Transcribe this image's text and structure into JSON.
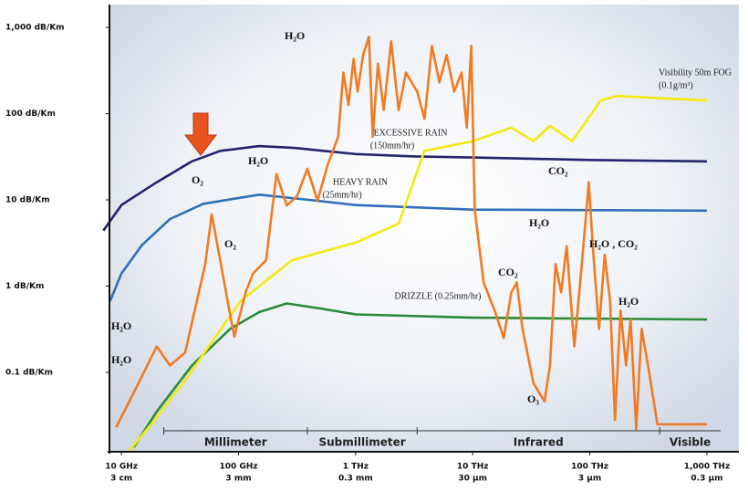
{
  "chart_data": {
    "type": "line",
    "log_x": true,
    "log_y": true,
    "xlim": [
      7.9,
      1310000
    ],
    "ylim": [
      0.012,
      1630
    ],
    "yticks": [
      {
        "value": 1000,
        "label": "1,000 dB/Km"
      },
      {
        "value": 100,
        "label": "100 dB/Km"
      },
      {
        "value": 10,
        "label": "10 dB/Km"
      },
      {
        "value": 1,
        "label": "1 dB/Km"
      },
      {
        "value": 0.1,
        "label": "0.1 dB/Km"
      }
    ],
    "xticks": [
      {
        "value": 10,
        "label": "10 GHz"
      },
      {
        "value": 100,
        "label": "100 GHz"
      },
      {
        "value": 1000,
        "label": "1 THz"
      },
      {
        "value": 10000,
        "label": "10 THz"
      },
      {
        "value": 100000,
        "label": "100 THz"
      },
      {
        "value": 1000000,
        "label": "1,000 THz"
      }
    ],
    "xtick_sublabels": [
      "3 cm",
      "3 mm",
      "0.3 mm",
      "30 µm",
      "3 µm",
      "0.3 µm"
    ],
    "bands": [
      {
        "label": "Millimeter",
        "from": 23,
        "to": 387
      },
      {
        "label": "Submillimeter",
        "from": 387,
        "to": 3350
      },
      {
        "label": "Infrared",
        "from": 3350,
        "to": 395000
      },
      {
        "label": "Visible",
        "from": 395000,
        "to": 1310000
      }
    ],
    "series": [
      {
        "name": "EXCESSIVE RAIN",
        "name_detail": "(150mm/hr)",
        "color": "#24246e",
        "x": [
          7,
          10,
          20,
          40,
          70,
          150,
          300,
          1000,
          3000,
          10000,
          100000,
          1000000
        ],
        "values": [
          4.4,
          8.7,
          16,
          28,
          37,
          42,
          40,
          34,
          32,
          31,
          29,
          28
        ]
      },
      {
        "name": "HEAVY RAIN",
        "name_detail": "(25mm/hr)",
        "color": "#2f6fb8",
        "x": [
          8,
          10,
          15,
          26,
          50,
          150,
          400,
          1000,
          10000,
          1000000
        ],
        "values": [
          0.67,
          1.4,
          3,
          6,
          9,
          11.5,
          10,
          8.7,
          7.7,
          7.5
        ]
      },
      {
        "name": "DRIZZLE (0.25mm/hr)",
        "color": "#2a8a3a",
        "x": [
          12.7,
          20,
          40,
          85,
          150,
          258,
          500,
          1000,
          10000,
          1000000
        ],
        "values": [
          0.0135,
          0.035,
          0.12,
          0.32,
          0.5,
          0.63,
          0.55,
          0.47,
          0.43,
          0.41
        ]
      },
      {
        "name": "Visibility 50m FOG",
        "name_detail": "(0.1g/m³)",
        "color": "#f2ea10",
        "x": [
          11.5,
          20,
          38,
          104,
          286,
          1000,
          2330,
          3870,
          10000,
          21400,
          33000,
          45700,
          70600,
          124000,
          169000,
          1000000
        ],
        "values": [
          0.012,
          0.03,
          0.095,
          0.67,
          2.0,
          3.2,
          5.3,
          37,
          48,
          69,
          48,
          72,
          48,
          142,
          160,
          142
        ]
      },
      {
        "color": "#f27a22",
        "x": [
          9,
          14,
          20,
          26,
          35,
          52,
          59,
          85,
          92,
          115,
          133,
          172,
          211,
          258,
          316,
          387,
          473,
          580,
          709,
          785,
          869,
          960,
          1040,
          1160,
          1300,
          1400,
          1550,
          1740,
          2010,
          2330,
          2690,
          3350,
          3880,
          4480,
          5190,
          6000,
          6950,
          8030,
          8900,
          9710,
          10400,
          12400,
          15400,
          18400,
          21400,
          23800,
          26600,
          33000,
          41000,
          45700,
          51000,
          56900,
          63400,
          73800,
          84100,
          98000,
          106000,
          120000,
          134000,
          149000,
          164000,
          183000,
          204000,
          223000,
          249000,
          277000,
          314000,
          378000,
          499000,
          1000000
        ],
        "values": [
          0.023,
          0.075,
          0.2,
          0.12,
          0.17,
          1.8,
          6.8,
          0.46,
          0.26,
          0.85,
          1.4,
          2.0,
          20,
          8.6,
          11,
          23,
          9.8,
          26,
          54,
          300,
          126,
          430,
          180,
          480,
          780,
          54,
          380,
          110,
          690,
          110,
          300,
          180,
          87,
          610,
          230,
          480,
          180,
          300,
          69,
          610,
          7.7,
          1.1,
          0.52,
          0.25,
          0.85,
          1.1,
          0.32,
          0.075,
          0.046,
          0.12,
          1.8,
          0.85,
          2.9,
          0.2,
          1.4,
          16,
          2.9,
          0.32,
          2.3,
          0.67,
          0.028,
          0.52,
          0.12,
          0.41,
          0.022,
          0.32,
          0.12,
          0.025,
          0.025,
          0.025
        ]
      }
    ],
    "annotations": [
      "H₂O",
      "O₂",
      "H₂O",
      "O₂",
      "H₂O",
      "H₂O",
      "CO₂",
      "O₃",
      "H₂O",
      "CO₂",
      "H₂O , CO₂",
      "H₂O"
    ]
  }
}
